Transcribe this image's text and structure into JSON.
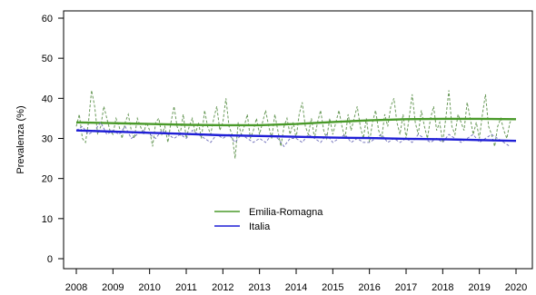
{
  "chart_data": {
    "type": "line",
    "title": "",
    "xlabel": "",
    "ylabel": "Prevalenza (%)",
    "xlim": [
      2008,
      2020
    ],
    "ylim": [
      0,
      60
    ],
    "x_ticks": [
      "2008",
      "2009",
      "2010",
      "2011",
      "2012",
      "2013",
      "2014",
      "2015",
      "2016",
      "2017",
      "2018",
      "2019",
      "2020"
    ],
    "y_ticks": [
      0,
      10,
      20,
      30,
      40,
      50,
      60
    ],
    "grid": false,
    "legend_position": "bottom-center",
    "legend": [
      {
        "label": "Emilia-Romagna",
        "color": "#4a9a2a"
      },
      {
        "label": "Italia",
        "color": "#1f1fd6"
      }
    ],
    "series": [
      {
        "name": "Emilia-Romagna",
        "style": "dashed",
        "color": "#6a9a5a",
        "x": [
          2008.0,
          2008.083,
          2008.167,
          2008.25,
          2008.333,
          2008.417,
          2008.5,
          2008.583,
          2008.667,
          2008.75,
          2008.833,
          2008.917,
          2009.0,
          2009.083,
          2009.167,
          2009.25,
          2009.333,
          2009.417,
          2009.5,
          2009.583,
          2009.667,
          2009.75,
          2009.833,
          2009.917,
          2010.0,
          2010.083,
          2010.167,
          2010.25,
          2010.333,
          2010.417,
          2010.5,
          2010.583,
          2010.667,
          2010.75,
          2010.833,
          2010.917,
          2011.0,
          2011.083,
          2011.167,
          2011.25,
          2011.333,
          2011.417,
          2011.5,
          2011.583,
          2011.667,
          2011.75,
          2011.833,
          2011.917,
          2012.0,
          2012.083,
          2012.167,
          2012.25,
          2012.333,
          2012.417,
          2012.5,
          2012.583,
          2012.667,
          2012.75,
          2012.833,
          2012.917,
          2013.0,
          2013.083,
          2013.167,
          2013.25,
          2013.333,
          2013.417,
          2013.5,
          2013.583,
          2013.667,
          2013.75,
          2013.833,
          2013.917,
          2014.0,
          2014.083,
          2014.167,
          2014.25,
          2014.333,
          2014.417,
          2014.5,
          2014.583,
          2014.667,
          2014.75,
          2014.833,
          2014.917,
          2015.0,
          2015.083,
          2015.167,
          2015.25,
          2015.333,
          2015.417,
          2015.5,
          2015.583,
          2015.667,
          2015.75,
          2015.833,
          2015.917,
          2016.0,
          2016.083,
          2016.167,
          2016.25,
          2016.333,
          2016.417,
          2016.5,
          2016.583,
          2016.667,
          2016.75,
          2016.833,
          2016.917,
          2017.0,
          2017.083,
          2017.167,
          2017.25,
          2017.333,
          2017.417,
          2017.5,
          2017.583,
          2017.667,
          2017.75,
          2017.833,
          2017.917,
          2018.0,
          2018.083,
          2018.167,
          2018.25,
          2018.333,
          2018.417,
          2018.5,
          2018.583,
          2018.667,
          2018.75,
          2018.833,
          2018.917,
          2019.0,
          2019.083,
          2019.167,
          2019.25,
          2019.333,
          2019.417,
          2019.5,
          2019.583,
          2019.667,
          2019.75,
          2019.833,
          2019.917
        ],
        "y": [
          33,
          36,
          30,
          29,
          34,
          42,
          38,
          31,
          33,
          38,
          35,
          32,
          31,
          35,
          33,
          30,
          34,
          36,
          32,
          30,
          35,
          33,
          31,
          34,
          32,
          28,
          34,
          35,
          31,
          33,
          29,
          34,
          38,
          33,
          31,
          36,
          30,
          33,
          35,
          31,
          34,
          30,
          37,
          33,
          31,
          35,
          38,
          32,
          34,
          40,
          33,
          31,
          25,
          34,
          31,
          33,
          36,
          30,
          32,
          35,
          31,
          34,
          37,
          33,
          30,
          36,
          32,
          28,
          33,
          35,
          31,
          34,
          30,
          36,
          39,
          33,
          31,
          35,
          30,
          34,
          37,
          32,
          30,
          35,
          31,
          34,
          37,
          33,
          30,
          36,
          32,
          35,
          38,
          33,
          30,
          35,
          29,
          34,
          37,
          32,
          30,
          36,
          33,
          38,
          40,
          34,
          31,
          36,
          30,
          35,
          41,
          34,
          31,
          37,
          33,
          30,
          35,
          38,
          32,
          34,
          29,
          35,
          42,
          33,
          31,
          36,
          34,
          32,
          39,
          35,
          31,
          34,
          30,
          36,
          41,
          33,
          31,
          28,
          33,
          35,
          32,
          30,
          34,
          35
        ]
      },
      {
        "name": "Emilia-Romagna",
        "style": "solid",
        "color": "#4a9a2a",
        "x": [
          2008,
          2009,
          2010,
          2011,
          2012,
          2013,
          2014,
          2015,
          2016,
          2017,
          2018,
          2019,
          2020
        ],
        "y": [
          34.0,
          33.8,
          33.6,
          33.4,
          33.3,
          33.3,
          33.6,
          34.1,
          34.5,
          34.8,
          34.9,
          34.9,
          34.8
        ]
      },
      {
        "name": "Italia",
        "style": "dashed",
        "color": "#7a7abf",
        "x": [
          2008.0,
          2008.167,
          2008.333,
          2008.5,
          2008.667,
          2008.833,
          2009.0,
          2009.167,
          2009.333,
          2009.5,
          2009.667,
          2009.833,
          2010.0,
          2010.167,
          2010.333,
          2010.5,
          2010.667,
          2010.833,
          2011.0,
          2011.167,
          2011.333,
          2011.5,
          2011.667,
          2011.833,
          2012.0,
          2012.167,
          2012.333,
          2012.5,
          2012.667,
          2012.833,
          2013.0,
          2013.167,
          2013.333,
          2013.5,
          2013.667,
          2013.833,
          2014.0,
          2014.167,
          2014.333,
          2014.5,
          2014.667,
          2014.833,
          2015.0,
          2015.167,
          2015.333,
          2015.5,
          2015.667,
          2015.833,
          2016.0,
          2016.167,
          2016.333,
          2016.5,
          2016.667,
          2016.833,
          2017.0,
          2017.167,
          2017.333,
          2017.5,
          2017.667,
          2017.833,
          2018.0,
          2018.167,
          2018.333,
          2018.5,
          2018.667,
          2018.833,
          2019.0,
          2019.167,
          2019.333,
          2019.5,
          2019.667,
          2019.833
        ],
        "y": [
          32,
          33,
          31,
          32,
          34,
          31,
          32,
          31,
          33,
          30,
          31,
          32,
          31,
          30,
          32,
          31,
          30,
          31,
          30,
          32,
          31,
          30,
          29,
          31,
          30,
          31,
          29,
          31,
          30,
          29,
          30,
          29,
          31,
          30,
          28,
          30,
          30,
          29,
          31,
          30,
          29,
          31,
          29,
          30,
          31,
          29,
          30,
          29,
          29,
          30,
          31,
          29,
          30,
          29,
          30,
          29,
          31,
          30,
          29,
          30,
          29,
          31,
          30,
          29,
          30,
          31,
          29,
          30,
          31,
          30,
          29,
          28
        ]
      },
      {
        "name": "Italia",
        "style": "solid",
        "color": "#1f1fd6",
        "x": [
          2008,
          2009,
          2010,
          2011,
          2012,
          2013,
          2014,
          2015,
          2016,
          2017,
          2018,
          2019,
          2020
        ],
        "y": [
          32.0,
          31.7,
          31.4,
          31.1,
          30.8,
          30.6,
          30.4,
          30.2,
          30.1,
          29.9,
          29.8,
          29.6,
          29.4
        ]
      }
    ]
  }
}
